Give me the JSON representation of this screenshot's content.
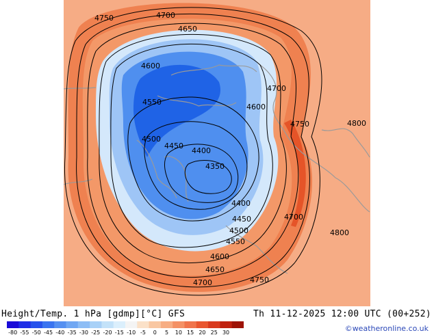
{
  "map": {
    "contour_labels": [
      {
        "text": "4750",
        "name": "contour-label-4750"
      },
      {
        "text": "4700",
        "name": "contour-label-4700"
      },
      {
        "text": "4650",
        "name": "contour-label-4650"
      },
      {
        "text": "4600",
        "name": "contour-label-4600"
      },
      {
        "text": "4550",
        "name": "contour-label-4550"
      },
      {
        "text": "4500",
        "name": "contour-label-4500"
      },
      {
        "text": "4450",
        "name": "contour-label-4450"
      },
      {
        "text": "4400",
        "name": "contour-label-4400"
      },
      {
        "text": "4350",
        "name": "contour-label-4350"
      },
      {
        "text": "4700",
        "name": "contour-label-4700"
      },
      {
        "text": "4600",
        "name": "contour-label-4600"
      },
      {
        "text": "4750",
        "name": "contour-label-4750"
      },
      {
        "text": "4800",
        "name": "contour-label-4800"
      },
      {
        "text": "4400",
        "name": "contour-label-4400"
      },
      {
        "text": "4450",
        "name": "contour-label-4450"
      },
      {
        "text": "4500",
        "name": "contour-label-4500"
      },
      {
        "text": "4550",
        "name": "contour-label-4550"
      },
      {
        "text": "4600",
        "name": "contour-label-4600"
      },
      {
        "text": "4650",
        "name": "contour-label-4650"
      },
      {
        "text": "4700",
        "name": "contour-label-4700"
      },
      {
        "text": "4750",
        "name": "contour-label-4750"
      },
      {
        "text": "4700",
        "name": "contour-label-4700"
      },
      {
        "text": "4800",
        "name": "contour-label-4800"
      }
    ],
    "colors": {
      "warm_background": "#f5a27a",
      "warm_outer_band": "#ef7f4c",
      "deep_warm": "#e65a2b",
      "cold_core": "#1f63e6",
      "cold_mid": "#4f8fef",
      "cold_light": "#9ec5f6",
      "cold_pale": "#d4e8fb",
      "coastline": "#9a9a9a",
      "contour": "#000000"
    }
  },
  "caption": {
    "left": "Height/Temp. 1 hPa [gdmp][°C] GFS",
    "right": "Th 11-12-2025 12:00 UTC (00+252)"
  },
  "colorbar": {
    "tick_labels": [
      "-80",
      "-55",
      "-50",
      "-45",
      "-40",
      "-35",
      "-30",
      "-25",
      "-20",
      "-15",
      "-10",
      "-5",
      "0",
      "5",
      "10",
      "15",
      "20",
      "25",
      "30"
    ],
    "colors": [
      "#1a0bd8",
      "#1f2ee6",
      "#2652ec",
      "#3a74f0",
      "#5590f1",
      "#70a7f3",
      "#8dbdf5",
      "#a9d1f7",
      "#c3e2f9",
      "#dbeffc",
      "#f4f4f4",
      "#fbe1c8",
      "#f9c7a2",
      "#f7ad83",
      "#f49165",
      "#f0744b",
      "#e9562f",
      "#d93a1e",
      "#c0210f",
      "#9e1306"
    ]
  },
  "credit": "©weatheronline.co.uk"
}
